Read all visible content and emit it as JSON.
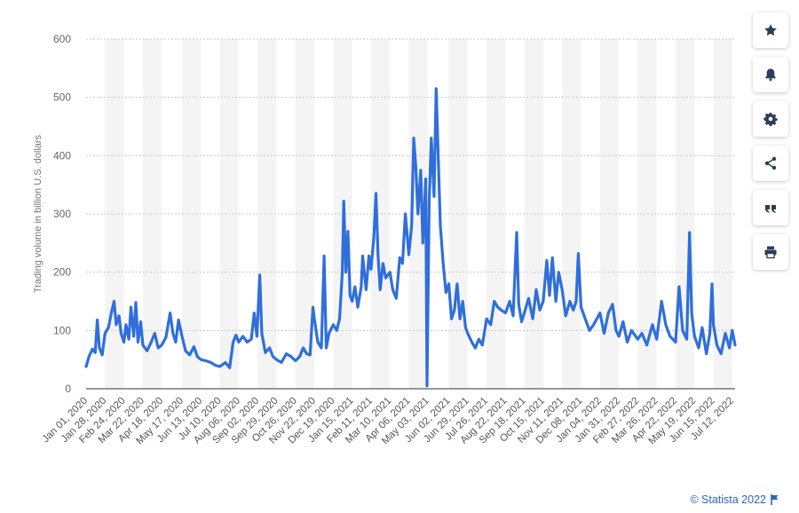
{
  "chart_data": {
    "type": "line",
    "ylabel": "Trading volume in billion U.S. dollars",
    "ylim": [
      0,
      600
    ],
    "yticks": [
      0,
      100,
      200,
      300,
      400,
      500,
      600
    ],
    "xticks": [
      "Jan 01, 2020",
      "Jan 28, 2020",
      "Feb 24, 2020",
      "Mar 22, 2020",
      "Apr 18, 2020",
      "May 17, 2020",
      "Jun 13, 2020",
      "Jul 10, 2020",
      "Aug 06, 2020",
      "Sep 02, 2020",
      "Sep 29, 2020",
      "Oct 26, 2020",
      "Nov 22, 2020",
      "Dec 19, 2020",
      "Jan 15, 2021",
      "Feb 11, 2021",
      "Mar 10, 2021",
      "Apr 06, 2021",
      "May 03, 2021",
      "Jun 02, 2021",
      "Jun 29, 2021",
      "Jul 26, 2021",
      "Aug 22, 2021",
      "Sep 18, 2021",
      "Oct 15, 2021",
      "Nov 11, 2021",
      "Dec 08, 2021",
      "Jan 04, 2022",
      "Jan 31, 2022",
      "Feb 27, 2022",
      "Mar 26, 2022",
      "Apr 22, 2022",
      "May 19, 2022",
      "Jun 15, 2022",
      "Jul 12, 2022"
    ],
    "grid": true,
    "legend": "none",
    "series": [
      {
        "color": "#2f6fdb",
        "points": [
          [
            "Jan 01, 2020",
            38
          ],
          [
            "Jan 05, 2020",
            55
          ],
          [
            "Jan 10, 2020",
            68
          ],
          [
            "Jan 14, 2020",
            62
          ],
          [
            "Jan 17, 2020",
            118
          ],
          [
            "Jan 20, 2020",
            70
          ],
          [
            "Jan 24, 2020",
            58
          ],
          [
            "Jan 28, 2020",
            95
          ],
          [
            "Feb 02, 2020",
            105
          ],
          [
            "Feb 06, 2020",
            130
          ],
          [
            "Feb 10, 2020",
            150
          ],
          [
            "Feb 13, 2020",
            110
          ],
          [
            "Feb 17, 2020",
            125
          ],
          [
            "Feb 20, 2020",
            95
          ],
          [
            "Feb 24, 2020",
            80
          ],
          [
            "Feb 27, 2020",
            110
          ],
          [
            "Mar 02, 2020",
            85
          ],
          [
            "Mar 05, 2020",
            140
          ],
          [
            "Mar 09, 2020",
            90
          ],
          [
            "Mar 12, 2020",
            148
          ],
          [
            "Mar 15, 2020",
            80
          ],
          [
            "Mar 19, 2020",
            115
          ],
          [
            "Mar 22, 2020",
            75
          ],
          [
            "Mar 28, 2020",
            65
          ],
          [
            "Apr 03, 2020",
            80
          ],
          [
            "Apr 08, 2020",
            95
          ],
          [
            "Apr 13, 2020",
            70
          ],
          [
            "Apr 18, 2020",
            75
          ],
          [
            "Apr 24, 2020",
            88
          ],
          [
            "Apr 30, 2020",
            130
          ],
          [
            "May 04, 2020",
            95
          ],
          [
            "May 08, 2020",
            80
          ],
          [
            "May 12, 2020",
            118
          ],
          [
            "May 17, 2020",
            90
          ],
          [
            "May 22, 2020",
            65
          ],
          [
            "May 28, 2020",
            58
          ],
          [
            "Jun 03, 2020",
            72
          ],
          [
            "Jun 08, 2020",
            55
          ],
          [
            "Jun 13, 2020",
            50
          ],
          [
            "Jun 20, 2020",
            48
          ],
          [
            "Jun 27, 2020",
            45
          ],
          [
            "Jul 04, 2020",
            40
          ],
          [
            "Jul 10, 2020",
            38
          ],
          [
            "Jul 18, 2020",
            45
          ],
          [
            "Jul 24, 2020",
            36
          ],
          [
            "Jul 29, 2020",
            80
          ],
          [
            "Aug 02, 2020",
            92
          ],
          [
            "Aug 06, 2020",
            80
          ],
          [
            "Aug 12, 2020",
            90
          ],
          [
            "Aug 18, 2020",
            80
          ],
          [
            "Aug 24, 2020",
            85
          ],
          [
            "Aug 28, 2020",
            130
          ],
          [
            "Sep 01, 2020",
            90
          ],
          [
            "Sep 05, 2020",
            195
          ],
          [
            "Sep 08, 2020",
            95
          ],
          [
            "Sep 13, 2020",
            62
          ],
          [
            "Sep 19, 2020",
            70
          ],
          [
            "Sep 24, 2020",
            55
          ],
          [
            "Sep 29, 2020",
            50
          ],
          [
            "Oct 06, 2020",
            45
          ],
          [
            "Oct 13, 2020",
            60
          ],
          [
            "Oct 20, 2020",
            55
          ],
          [
            "Oct 26, 2020",
            48
          ],
          [
            "Nov 01, 2020",
            55
          ],
          [
            "Nov 06, 2020",
            70
          ],
          [
            "Nov 11, 2020",
            60
          ],
          [
            "Nov 16, 2020",
            58
          ],
          [
            "Nov 20, 2020",
            140
          ],
          [
            "Nov 22, 2020",
            120
          ],
          [
            "Nov 27, 2020",
            80
          ],
          [
            "Dec 02, 2020",
            70
          ],
          [
            "Dec 06, 2020",
            228
          ],
          [
            "Dec 09, 2020",
            70
          ],
          [
            "Dec 13, 2020",
            95
          ],
          [
            "Dec 19, 2020",
            110
          ],
          [
            "Dec 24, 2020",
            100
          ],
          [
            "Dec 28, 2020",
            120
          ],
          [
            "Jan 01, 2021",
            200
          ],
          [
            "Jan 03, 2021",
            322
          ],
          [
            "Jan 06, 2021",
            200
          ],
          [
            "Jan 09, 2021",
            270
          ],
          [
            "Jan 12, 2021",
            160
          ],
          [
            "Jan 15, 2021",
            150
          ],
          [
            "Jan 19, 2021",
            175
          ],
          [
            "Jan 23, 2021",
            140
          ],
          [
            "Jan 28, 2021",
            175
          ],
          [
            "Jan 30, 2021",
            228
          ],
          [
            "Feb 04, 2021",
            170
          ],
          [
            "Feb 08, 2021",
            228
          ],
          [
            "Feb 11, 2021",
            205
          ],
          [
            "Feb 15, 2021",
            260
          ],
          [
            "Feb 18, 2021",
            335
          ],
          [
            "Feb 21, 2021",
            230
          ],
          [
            "Feb 24, 2021",
            170
          ],
          [
            "Feb 28, 2021",
            215
          ],
          [
            "Mar 04, 2021",
            190
          ],
          [
            "Mar 10, 2021",
            200
          ],
          [
            "Mar 14, 2021",
            170
          ],
          [
            "Mar 19, 2021",
            155
          ],
          [
            "Mar 24, 2021",
            225
          ],
          [
            "Mar 28, 2021",
            215
          ],
          [
            "Apr 01, 2021",
            300
          ],
          [
            "Apr 06, 2021",
            230
          ],
          [
            "Apr 10, 2021",
            280
          ],
          [
            "Apr 13, 2021",
            430
          ],
          [
            "Apr 16, 2021",
            380
          ],
          [
            "Apr 19, 2021",
            300
          ],
          [
            "Apr 23, 2021",
            375
          ],
          [
            "Apr 26, 2021",
            250
          ],
          [
            "Apr 30, 2021",
            360
          ],
          [
            "May 02, 2021",
            5
          ],
          [
            "May 05, 2021",
            320
          ],
          [
            "May 08, 2021",
            430
          ],
          [
            "May 12, 2021",
            330
          ],
          [
            "May 15, 2021",
            515
          ],
          [
            "May 18, 2021",
            400
          ],
          [
            "May 21, 2021",
            280
          ],
          [
            "May 25, 2021",
            215
          ],
          [
            "May 29, 2021",
            165
          ],
          [
            "Jun 02, 2021",
            180
          ],
          [
            "Jun 06, 2021",
            120
          ],
          [
            "Jun 10, 2021",
            135
          ],
          [
            "Jun 14, 2021",
            180
          ],
          [
            "Jun 18, 2021",
            120
          ],
          [
            "Jun 22, 2021",
            150
          ],
          [
            "Jun 26, 2021",
            105
          ],
          [
            "Jun 29, 2021",
            95
          ],
          [
            "Jul 05, 2021",
            80
          ],
          [
            "Jul 10, 2021",
            70
          ],
          [
            "Jul 15, 2021",
            85
          ],
          [
            "Jul 20, 2021",
            75
          ],
          [
            "Jul 26, 2021",
            120
          ],
          [
            "Aug 01, 2021",
            110
          ],
          [
            "Aug 06, 2021",
            150
          ],
          [
            "Aug 11, 2021",
            140
          ],
          [
            "Aug 16, 2021",
            135
          ],
          [
            "Aug 22, 2021",
            130
          ],
          [
            "Aug 28, 2021",
            150
          ],
          [
            "Sep 02, 2021",
            125
          ],
          [
            "Sep 07, 2021",
            268
          ],
          [
            "Sep 10, 2021",
            145
          ],
          [
            "Sep 14, 2021",
            115
          ],
          [
            "Sep 18, 2021",
            130
          ],
          [
            "Sep 24, 2021",
            155
          ],
          [
            "Sep 30, 2021",
            120
          ],
          [
            "Oct 05, 2021",
            170
          ],
          [
            "Oct 10, 2021",
            135
          ],
          [
            "Oct 15, 2021",
            150
          ],
          [
            "Oct 20, 2021",
            220
          ],
          [
            "Oct 24, 2021",
            160
          ],
          [
            "Oct 28, 2021",
            225
          ],
          [
            "Nov 02, 2021",
            150
          ],
          [
            "Nov 06, 2021",
            200
          ],
          [
            "Nov 11, 2021",
            170
          ],
          [
            "Nov 16, 2021",
            125
          ],
          [
            "Nov 22, 2021",
            150
          ],
          [
            "Nov 27, 2021",
            135
          ],
          [
            "Dec 01, 2021",
            150
          ],
          [
            "Dec 04, 2021",
            232
          ],
          [
            "Dec 08, 2021",
            140
          ],
          [
            "Dec 14, 2021",
            120
          ],
          [
            "Dec 20, 2021",
            100
          ],
          [
            "Dec 26, 2021",
            110
          ],
          [
            "Jan 04, 2022",
            130
          ],
          [
            "Jan 10, 2022",
            95
          ],
          [
            "Jan 16, 2022",
            130
          ],
          [
            "Jan 22, 2022",
            145
          ],
          [
            "Jan 27, 2022",
            100
          ],
          [
            "Jan 31, 2022",
            90
          ],
          [
            "Feb 06, 2022",
            115
          ],
          [
            "Feb 12, 2022",
            80
          ],
          [
            "Feb 18, 2022",
            100
          ],
          [
            "Feb 27, 2022",
            85
          ],
          [
            "Mar 05, 2022",
            95
          ],
          [
            "Mar 12, 2022",
            75
          ],
          [
            "Mar 20, 2022",
            110
          ],
          [
            "Mar 26, 2022",
            85
          ],
          [
            "Apr 02, 2022",
            150
          ],
          [
            "Apr 08, 2022",
            110
          ],
          [
            "Apr 14, 2022",
            90
          ],
          [
            "Apr 22, 2022",
            80
          ],
          [
            "Apr 27, 2022",
            175
          ],
          [
            "May 02, 2022",
            100
          ],
          [
            "May 08, 2022",
            85
          ],
          [
            "May 12, 2022",
            268
          ],
          [
            "May 15, 2022",
            130
          ],
          [
            "May 19, 2022",
            90
          ],
          [
            "May 25, 2022",
            70
          ],
          [
            "May 30, 2022",
            105
          ],
          [
            "Jun 05, 2022",
            60
          ],
          [
            "Jun 10, 2022",
            95
          ],
          [
            "Jun 13, 2022",
            180
          ],
          [
            "Jun 15, 2022",
            110
          ],
          [
            "Jun 20, 2022",
            75
          ],
          [
            "Jun 26, 2022",
            60
          ],
          [
            "Jul 02, 2022",
            95
          ],
          [
            "Jul 08, 2022",
            70
          ],
          [
            "Jul 12, 2022",
            100
          ],
          [
            "Jul 16, 2022",
            75
          ]
        ]
      }
    ]
  },
  "sidebar": {
    "buttons": [
      {
        "icon": "star-icon",
        "name": "favorite-button"
      },
      {
        "icon": "bell-icon",
        "name": "notification-button"
      },
      {
        "icon": "gear-icon",
        "name": "settings-button"
      },
      {
        "icon": "share-icon",
        "name": "share-button"
      },
      {
        "icon": "quote-icon",
        "name": "cite-button"
      },
      {
        "icon": "print-icon",
        "name": "print-button"
      }
    ]
  },
  "credit": {
    "text": "© Statista 2022",
    "flag_icon": "flag-icon"
  }
}
